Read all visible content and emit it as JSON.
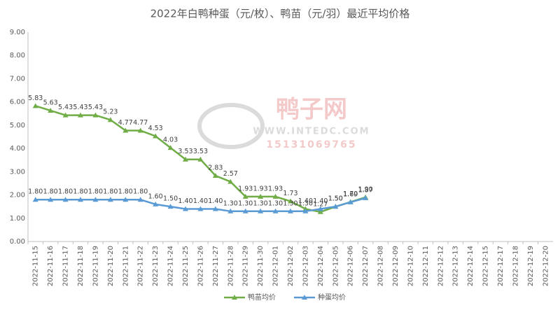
{
  "chart_data": {
    "type": "line",
    "title": "2022年白鸭种蛋（元/枚）、鸭苗（元/羽）最近平均价格",
    "watermark": [
      "鸭子网",
      "WWW.INTEDC.COM",
      "15131069765"
    ],
    "categories": [
      "2022-11-15",
      "2022-11-16",
      "2022-11-17",
      "2022-11-18",
      "2022-11-19",
      "2022-11-20",
      "2022-11-21",
      "2022-11-22",
      "2022-11-23",
      "2022-11-24",
      "2022-11-25",
      "2022-11-26",
      "2022-11-27",
      "2022-11-28",
      "2022-11-29",
      "2022-11-30",
      "2022-12-01",
      "2022-12-02",
      "2022-12-03",
      "2022-12-04",
      "2022-12-05",
      "2022-12-06",
      "2022-12-07",
      "2022-12-08",
      "2022-12-09",
      "2022-12-10",
      "2022-12-11",
      "2022-12-12",
      "2022-12-13",
      "2022-12-14",
      "2022-12-15",
      "2022-12-17",
      "2022-12-18",
      "2022-12-19",
      "2022-12-20"
    ],
    "series": [
      {
        "name": "鸭苗均价",
        "color": "#70ad47",
        "values": [
          5.83,
          5.63,
          5.43,
          5.43,
          5.43,
          5.23,
          4.77,
          4.77,
          4.53,
          4.03,
          3.53,
          3.53,
          2.83,
          2.57,
          1.93,
          1.93,
          1.93,
          1.73,
          1.4,
          1.27,
          1.5,
          1.7,
          1.9,
          null,
          null,
          null,
          null,
          null,
          null,
          null,
          null,
          null,
          null,
          null,
          null
        ],
        "value_labels": [
          "5.83",
          "5.63",
          "5.43",
          "5.43",
          "5.43",
          "5.23",
          "4.77",
          "4.77",
          "4.53",
          "4.03",
          "3.53",
          "3.53",
          "2.83",
          "2.57",
          "1.93",
          "1.93",
          "1.93",
          "1.73",
          "1.40",
          "1.27",
          "1.50",
          "1.70",
          "1.90",
          null,
          null,
          null,
          null,
          null,
          null,
          null,
          null,
          null,
          null,
          null,
          null
        ]
      },
      {
        "name": "种蛋均价",
        "color": "#5b9bd5",
        "values": [
          1.8,
          1.8,
          1.8,
          1.8,
          1.8,
          1.8,
          1.8,
          1.8,
          1.6,
          1.5,
          1.4,
          1.4,
          1.4,
          1.3,
          1.3,
          1.3,
          1.3,
          1.3,
          1.3,
          1.4,
          1.5,
          1.69,
          1.87,
          null,
          null,
          null,
          null,
          null,
          null,
          null,
          null,
          null,
          null,
          null,
          null
        ],
        "value_labels": [
          "1.80",
          "1.80",
          "1.80",
          "1.80",
          "1.80",
          "1.80",
          "1.80",
          "1.80",
          "1.60",
          "1.50",
          "1.40",
          "1.40",
          "1.40",
          "1.30",
          "1.30",
          "1.30",
          "1.30",
          "1.30",
          "1.30",
          "1.40",
          "1.50",
          "1.69",
          "1.87",
          null,
          null,
          null,
          null,
          null,
          null,
          null,
          null,
          null,
          null,
          null,
          null
        ]
      }
    ],
    "ylim": [
      0,
      9
    ],
    "yticks": [
      {
        "value": 0,
        "label": "0.00"
      },
      {
        "value": 1,
        "label": "1.00"
      },
      {
        "value": 2,
        "label": "2.00"
      },
      {
        "value": 3,
        "label": "3.00"
      },
      {
        "value": 4,
        "label": "4.00"
      },
      {
        "value": 5,
        "label": "5.00"
      },
      {
        "value": 6,
        "label": "6.00"
      },
      {
        "value": 7,
        "label": "7.00"
      },
      {
        "value": 8,
        "label": "8.00"
      },
      {
        "value": 9,
        "label": "9.00"
      }
    ],
    "grid": false,
    "legend": "bottom"
  }
}
